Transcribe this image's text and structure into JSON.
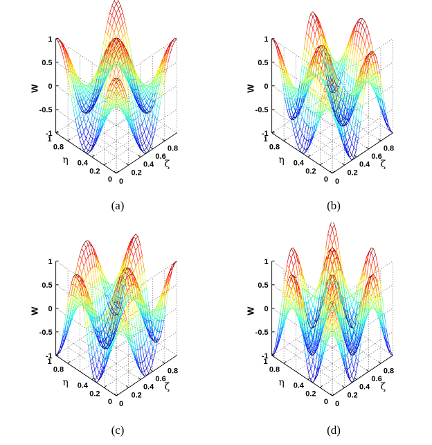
{
  "chart_data": [
    {
      "type": "surface",
      "panel_label": "(a)",
      "xlabel": "ζ",
      "ylabel": "η",
      "zlabel": "W",
      "xlim": [
        0,
        1
      ],
      "ylim": [
        0,
        1
      ],
      "zlim": [
        -1,
        1
      ],
      "x_ticks": [
        "0.2",
        "0.4",
        "0.6",
        "0.8"
      ],
      "y_ticks": [
        "0",
        "0.2",
        "0.4",
        "0.8",
        "1"
      ],
      "z_ticks": [
        "-1",
        "-0.5",
        "0",
        "0.5",
        "1"
      ],
      "grid": true,
      "mode_numbers": [
        2,
        2
      ],
      "colormap": "jet"
    },
    {
      "type": "surface",
      "panel_label": "(b)",
      "xlabel": "ζ",
      "ylabel": "η",
      "zlabel": "W",
      "xlim": [
        0,
        1
      ],
      "ylim": [
        0,
        1
      ],
      "zlim": [
        -1,
        1
      ],
      "x_ticks": [
        "0.2",
        "0.4",
        "0.6",
        "0.8"
      ],
      "y_ticks": [
        "0",
        "0.2",
        "0.4",
        "0.8",
        "1"
      ],
      "z_ticks": [
        "-1",
        "-0.5",
        "0",
        "0.5",
        "1"
      ],
      "grid": true,
      "mode_numbers": [
        3,
        2
      ],
      "colormap": "jet"
    },
    {
      "type": "surface",
      "panel_label": "(c)",
      "xlabel": "ζ",
      "ylabel": "η",
      "zlabel": "W",
      "xlim": [
        0,
        1
      ],
      "ylim": [
        0,
        1
      ],
      "zlim": [
        -1,
        1
      ],
      "x_ticks": [
        "0.2",
        "0.4",
        "0.6",
        "0.8"
      ],
      "y_ticks": [
        "0",
        "0.2",
        "0.4",
        "0.8",
        "1"
      ],
      "z_ticks": [
        "-1",
        "-0.5",
        "0",
        "0.5",
        "1"
      ],
      "grid": true,
      "mode_numbers": [
        2,
        3
      ],
      "colormap": "jet"
    },
    {
      "type": "surface",
      "panel_label": "(d)",
      "xlabel": "ζ",
      "ylabel": "η",
      "zlabel": "W",
      "xlim": [
        0,
        1
      ],
      "ylim": [
        0,
        1
      ],
      "zlim": [
        -1,
        1
      ],
      "x_ticks": [
        "0.2",
        "0.4",
        "0.6",
        "0.8"
      ],
      "y_ticks": [
        "0",
        "0.2",
        "0.4",
        "0.8",
        "1"
      ],
      "z_ticks": [
        "-1",
        "-0.5",
        "0",
        "0.5",
        "1"
      ],
      "grid": true,
      "mode_numbers": [
        3,
        3
      ],
      "colormap": "jet"
    }
  ]
}
